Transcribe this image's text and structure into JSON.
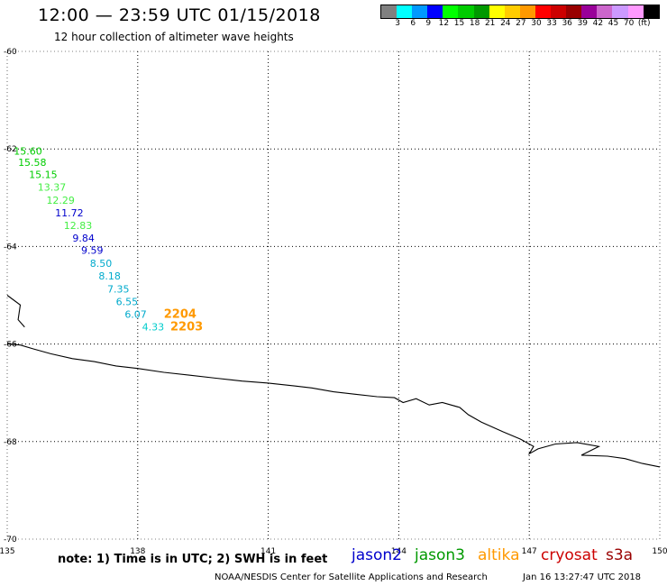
{
  "header": {
    "title": "12:00 — 23:59 UTC 01/15/2018",
    "subtitle": "12 hour collection of altimeter wave heights"
  },
  "colorbar": {
    "colors": [
      "#808080",
      "#00ffff",
      "#0099ff",
      "#0000ff",
      "#00ff00",
      "#00cc00",
      "#009900",
      "#ffff00",
      "#ffcc00",
      "#ff9900",
      "#ff0000",
      "#cc0000",
      "#990000",
      "#990099",
      "#cc66cc",
      "#cc99ff",
      "#ff99ff",
      "#000000"
    ],
    "labels": [
      "3",
      "6",
      "9",
      "12",
      "15",
      "18",
      "21",
      "24",
      "27",
      "30",
      "33",
      "36",
      "39",
      "42",
      "45",
      "70",
      "(ft)"
    ]
  },
  "axes": {
    "x_ticks": [
      "135",
      "138",
      "141",
      "144",
      "147",
      "150"
    ],
    "y_ticks": [
      "-60",
      "-62",
      "-64",
      "-66",
      "-68",
      "-70"
    ]
  },
  "observations": [
    {
      "value": "15.60",
      "color": "#00cc00",
      "lon": 135.15,
      "lat": -62.12
    },
    {
      "value": "15.58",
      "color": "#00cc00",
      "lon": 135.25,
      "lat": -62.35
    },
    {
      "value": "15.15",
      "color": "#00cc00",
      "lon": 135.5,
      "lat": -62.6
    },
    {
      "value": "13.37",
      "color": "#44ee44",
      "lon": 135.7,
      "lat": -62.86
    },
    {
      "value": "12.29",
      "color": "#44ee44",
      "lon": 135.9,
      "lat": -63.12
    },
    {
      "value": "11.72",
      "color": "#0000cc",
      "lon": 136.1,
      "lat": -63.38
    },
    {
      "value": "12.83",
      "color": "#44ee44",
      "lon": 136.3,
      "lat": -63.64
    },
    {
      "value": "9.84",
      "color": "#0000cc",
      "lon": 136.5,
      "lat": -63.9
    },
    {
      "value": "9.59",
      "color": "#0000cc",
      "lon": 136.7,
      "lat": -64.15
    },
    {
      "value": "8.50",
      "color": "#00aacc",
      "lon": 136.9,
      "lat": -64.42
    },
    {
      "value": "8.18",
      "color": "#00aacc",
      "lon": 137.1,
      "lat": -64.68
    },
    {
      "value": "7.35",
      "color": "#00aacc",
      "lon": 137.3,
      "lat": -64.94
    },
    {
      "value": "6.55",
      "color": "#00aacc",
      "lon": 137.5,
      "lat": -65.2
    },
    {
      "value": "6.07",
      "color": "#00aacc",
      "lon": 137.7,
      "lat": -65.46
    },
    {
      "value": "4.33",
      "color": "#00cccc",
      "lon": 138.1,
      "lat": -65.72
    }
  ],
  "time_labels": [
    {
      "text": "2204",
      "color": "#ff9900",
      "lon": 138.6,
      "lat": -65.46
    },
    {
      "text": "2203",
      "color": "#ff9900",
      "lon": 138.75,
      "lat": -65.72
    }
  ],
  "coastline": [
    [
      135.0,
      -66.0
    ],
    [
      135.3,
      -66.02
    ],
    [
      135.6,
      -66.1
    ],
    [
      136.0,
      -66.2
    ],
    [
      136.5,
      -66.3
    ],
    [
      137.0,
      -66.36
    ],
    [
      137.5,
      -66.45
    ],
    [
      138.0,
      -66.5
    ],
    [
      138.6,
      -66.58
    ],
    [
      139.2,
      -66.64
    ],
    [
      139.8,
      -66.7
    ],
    [
      140.4,
      -66.76
    ],
    [
      141.0,
      -66.8
    ],
    [
      141.6,
      -66.86
    ],
    [
      142.0,
      -66.9
    ],
    [
      142.5,
      -66.98
    ],
    [
      143.0,
      -67.03
    ],
    [
      143.5,
      -67.08
    ],
    [
      143.9,
      -67.1
    ],
    [
      144.1,
      -67.2
    ],
    [
      144.4,
      -67.12
    ],
    [
      144.7,
      -67.25
    ],
    [
      145.0,
      -67.2
    ],
    [
      145.4,
      -67.3
    ],
    [
      145.6,
      -67.45
    ],
    [
      145.9,
      -67.6
    ],
    [
      146.4,
      -67.8
    ],
    [
      146.8,
      -67.95
    ],
    [
      147.1,
      -68.1
    ],
    [
      147.0,
      -68.25
    ],
    [
      147.2,
      -68.15
    ],
    [
      147.6,
      -68.05
    ],
    [
      148.1,
      -68.02
    ],
    [
      148.6,
      -68.1
    ],
    [
      148.2,
      -68.28
    ],
    [
      148.8,
      -68.3
    ],
    [
      149.2,
      -68.35
    ],
    [
      149.6,
      -68.45
    ],
    [
      150.0,
      -68.52
    ]
  ],
  "coast_fragment": [
    [
      135.0,
      -65.0
    ],
    [
      135.3,
      -65.2
    ],
    [
      135.25,
      -65.5
    ],
    [
      135.4,
      -65.65
    ]
  ],
  "footer": {
    "note": "note: 1) Time is in UTC; 2) SWH is in feet",
    "legend": [
      {
        "name": "jason2",
        "color": "#0000cc"
      },
      {
        "name": "jason3",
        "color": "#009900"
      },
      {
        "name": "altika",
        "color": "#ff9900"
      },
      {
        "name": "cryosat",
        "color": "#cc0000"
      },
      {
        "name": "s3a",
        "color": "#990000"
      }
    ],
    "credit": "NOAA/NESDIS Center for Satellite Applications and Research",
    "stamp": "Jan 16 13:27:47 UTC 2018"
  }
}
